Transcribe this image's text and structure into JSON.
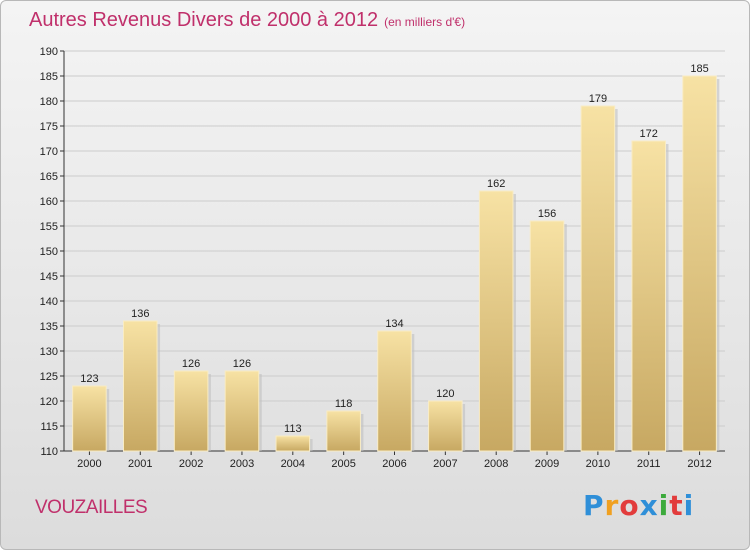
{
  "header": {
    "title": "Autres Revenus Divers de 2000 à 2012",
    "subtitle": "(en milliers d'€)"
  },
  "footer": {
    "commune": "VOUZAILLES",
    "logo_letters": [
      "P",
      "r",
      "o",
      "x",
      "i",
      "t",
      "i"
    ],
    "logo_colors": [
      "#2f8fd8",
      "#f0a020",
      "#e23c3c",
      "#2f8fd8",
      "#3caa3c",
      "#e23c3c",
      "#2f8fd8"
    ]
  },
  "colors": {
    "title": "#c0306b",
    "bar_light": "#f6df9e",
    "bar_dark": "#c9aa63",
    "grid": "#cccccc"
  },
  "chart_data": {
    "type": "bar",
    "title": "Autres Revenus Divers de 2000 à 2012",
    "subtitle": "(en milliers d'€)",
    "categories": [
      "2000",
      "2001",
      "2002",
      "2003",
      "2004",
      "2005",
      "2006",
      "2007",
      "2008",
      "2009",
      "2010",
      "2011",
      "2012"
    ],
    "values": [
      123,
      136,
      126,
      126,
      113,
      118,
      134,
      120,
      162,
      156,
      179,
      172,
      185
    ],
    "ylim": [
      110,
      190
    ],
    "ytick_step": 5,
    "grid": true,
    "xlabel": "",
    "ylabel": ""
  }
}
